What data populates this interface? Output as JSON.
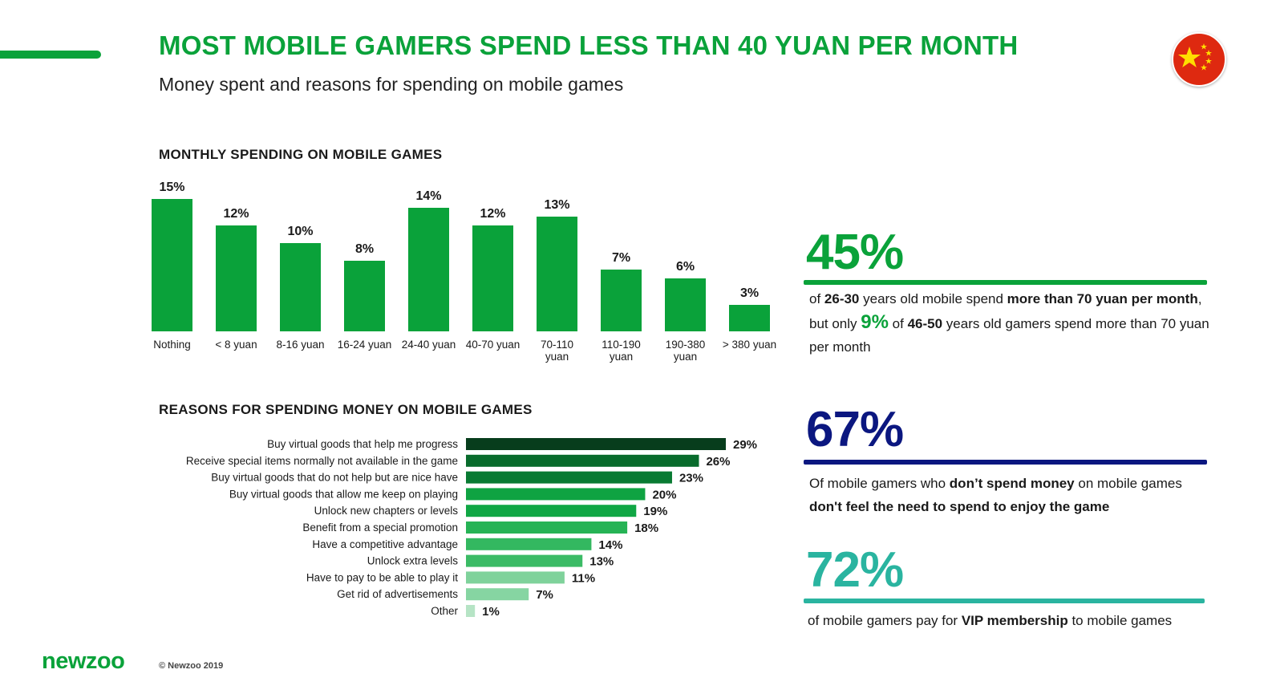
{
  "header": {
    "title": "MOST MOBILE GAMERS SPEND LESS THAN 40 YUAN PER MONTH",
    "subtitle": "Money spent and reasons for spending on mobile games"
  },
  "colors": {
    "brand_green": "#0aa23a",
    "navy": "#0b1780",
    "teal": "#2ab4a0",
    "flag_red": "#de2910",
    "flag_yellow": "#ffde00"
  },
  "chart_data": [
    {
      "type": "bar",
      "title": "MONTHLY SPENDING ON MOBILE GAMES",
      "categories": [
        "Nothing",
        "< 8 yuan",
        "8-16 yuan",
        "16-24 yuan",
        "24-40 yuan",
        "40-70 yuan",
        "70-110 yuan",
        "110-190 yuan",
        "190-380 yuan",
        "> 380 yuan"
      ],
      "values": [
        15,
        12,
        10,
        8,
        14,
        12,
        13,
        7,
        6,
        3
      ],
      "value_labels": [
        "15%",
        "12%",
        "10%",
        "8%",
        "14%",
        "12%",
        "13%",
        "7%",
        "6%",
        "3%"
      ],
      "unit": "%",
      "ylim": [
        0,
        15
      ],
      "color": "#0aa23a",
      "grid": false
    },
    {
      "type": "bar",
      "orientation": "horizontal",
      "title": "REASONS FOR SPENDING MONEY ON MOBILE GAMES",
      "categories": [
        "Buy virtual goods that help me progress",
        "Receive special items normally not available in the game",
        "Buy virtual goods that do not help but are nice have",
        "Buy virtual goods that allow me keep on playing",
        "Unlock new chapters or levels",
        "Benefit from a special promotion",
        "Have a competitive advantage",
        "Unlock extra levels",
        "Have to pay to be able to play it",
        "Get rid of advertisements",
        "Other"
      ],
      "values": [
        29,
        26,
        23,
        20,
        19,
        18,
        14,
        13,
        11,
        7,
        1
      ],
      "value_labels": [
        "29%",
        "26%",
        "23%",
        "20%",
        "19%",
        "18%",
        "14%",
        "13%",
        "11%",
        "7%",
        "1%"
      ],
      "unit": "%",
      "xlim": [
        0,
        29
      ],
      "colors": [
        "#073d1c",
        "#086b2c",
        "#087a32",
        "#0fa342",
        "#10a744",
        "#26b355",
        "#33b860",
        "#3bbb65",
        "#7fd29b",
        "#86d5a2",
        "#b6e4c5"
      ],
      "grid": false
    }
  ],
  "stats": [
    {
      "value": "45%",
      "parts": [
        {
          "t": "of ",
          "b": false
        },
        {
          "t": "26-30",
          "b": true
        },
        {
          "t": " years old mobile spend ",
          "b": false
        },
        {
          "t": "more than 70 yuan per month",
          "b": true
        },
        {
          "t": ", but only ",
          "b": false
        },
        {
          "t": "9%",
          "b": true,
          "hl": true
        },
        {
          "t": " of ",
          "b": false
        },
        {
          "t": "46-50",
          "b": true
        },
        {
          "t": " years old gamers spend more than 70 yuan per month",
          "b": false
        }
      ]
    },
    {
      "value": "67%",
      "parts": [
        {
          "t": "Of mobile gamers who ",
          "b": false
        },
        {
          "t": "don’t spend money",
          "b": true
        },
        {
          "t": " on mobile games ",
          "b": false
        },
        {
          "t": "don't feel the need to spend to enjoy the game",
          "b": true
        }
      ]
    },
    {
      "value": "72%",
      "parts": [
        {
          "t": "of mobile gamers pay for ",
          "b": false
        },
        {
          "t": "VIP membership",
          "b": true
        },
        {
          "t": " to mobile games",
          "b": false
        }
      ]
    }
  ],
  "footer": {
    "logo": "newzoo",
    "copyright": "© Newzoo 2019"
  }
}
